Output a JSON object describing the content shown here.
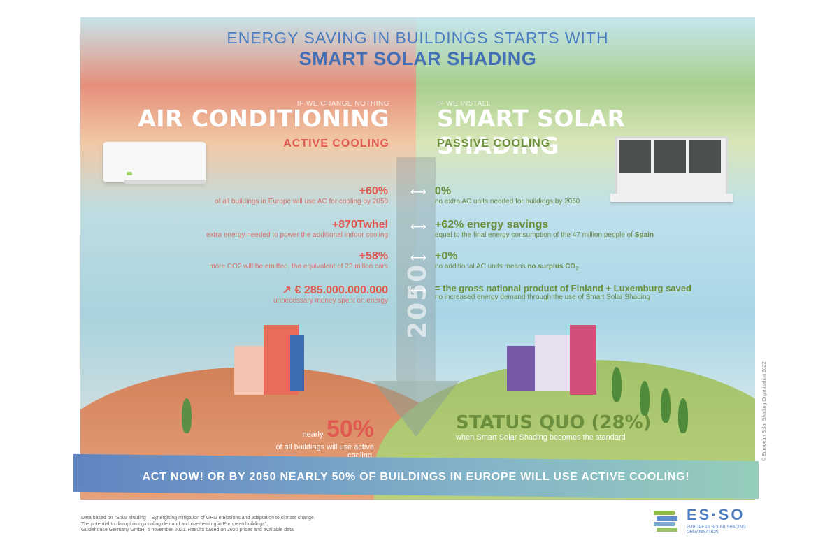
{
  "header": {
    "title_line1": "ENERGY SAVING IN BUILDINGS STARTS WITH",
    "title_line2": "SMART SOLAR SHADING"
  },
  "left": {
    "caption": "IF WE CHANGE NOTHING",
    "heading": "AIR CONDITIONING",
    "subheading": "ACTIVE COOLING",
    "stats": [
      {
        "value": "+60%",
        "desc": "of all buildings in Europe will use AC for cooling by 2050"
      },
      {
        "value": "+870Twhel",
        "desc": "extra energy needed to power the additional indoor cooling"
      },
      {
        "value": "+58%",
        "desc": "more CO2 will be emitted, the equivalent of 22 millon cars"
      },
      {
        "value": "€ 285.000.000.000",
        "desc": "unnecessary money spent on energy"
      }
    ],
    "bottom_prefix": "nearly",
    "bottom_value": "50%",
    "bottom_desc": "of all buildings will use active cooling."
  },
  "right": {
    "caption": "IF WE INSTALL",
    "heading": "SMART SOLAR SHADING",
    "subheading": "PASSIVE COOLING",
    "stats": [
      {
        "value": "0%",
        "desc": "no extra AC units needed for buildings by 2050"
      },
      {
        "value": "+62% energy savings",
        "desc": "equal to the final energy consumption of the 47 million people of",
        "desc_bold": "Spain"
      },
      {
        "value": "+0%",
        "desc": "no additional AC units means",
        "desc_bold": "no surplus CO",
        "desc_sub": "2"
      },
      {
        "value": "= the gross national product of Finland + Luxemburg saved",
        "desc": "no increased energy demand through the use of Smart Solar Shading"
      }
    ],
    "bottom_value": "STATUS QUO (28%)",
    "bottom_desc": "when Smart Solar Shading becomes the standard"
  },
  "center": {
    "year": "2050",
    "arrow_symbol": "⟷"
  },
  "banner": {
    "text": "ACT NOW! OR BY 2050 NEARLY 50% OF BUILDINGS IN EUROPE WILL USE ACTIVE COOLING!"
  },
  "footnote": {
    "line1": "Data based on \"Solar shading – Synergising mitigation of GHG emissions and adaptation to climate change.",
    "line2": "The potential to disrupt rising cooling demand and overheating in European buildings\",",
    "line3": "Guidehouse Germany GmbH, 5 november 2021. Results based on 2020 prices and available data."
  },
  "copyright": "© European Solar Shading Organisation 2022",
  "logo": {
    "name": "ES·SO",
    "sub": "EUROPEAN SOLAR SHADING ORGANISATION"
  },
  "colors": {
    "left_accent": "#e05a52",
    "right_accent": "#6b8f3c",
    "title_blue": "#4370b5"
  }
}
